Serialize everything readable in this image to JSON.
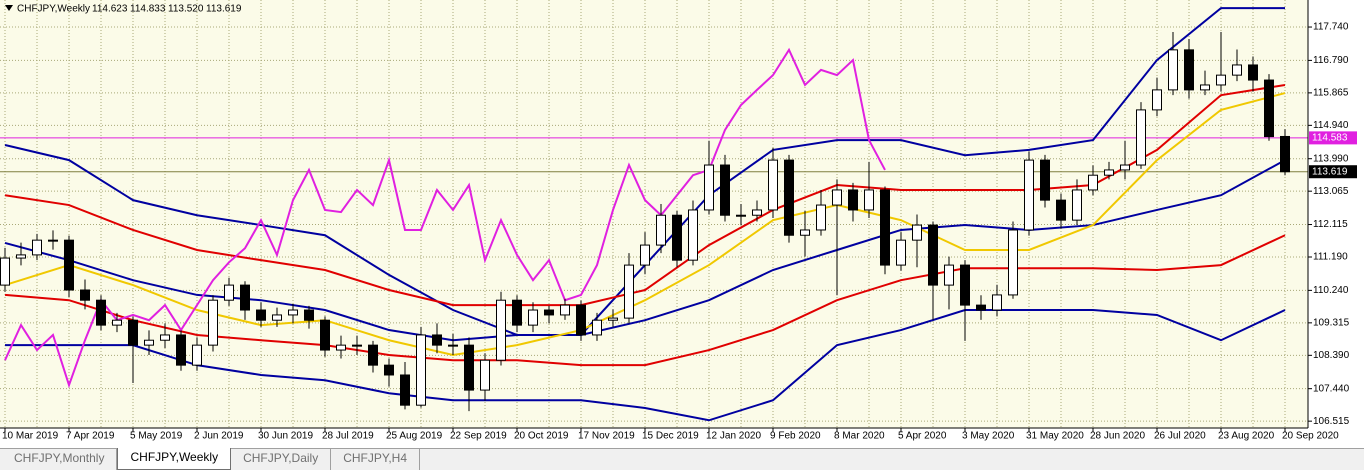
{
  "chart_data": {
    "type": "candlestick",
    "title": "CHFJPY,Weekly",
    "last_bar_labels": [
      "114.623",
      "114.833",
      "113.520",
      "113.619"
    ],
    "categories": [
      "10 Mar 2019",
      null,
      null,
      null,
      "7 Apr 2019",
      null,
      null,
      null,
      "5 May 2019",
      null,
      null,
      null,
      "2 Jun 2019",
      null,
      null,
      null,
      "30 Jun 2019",
      null,
      null,
      null,
      "28 Jul 2019",
      null,
      null,
      null,
      "25 Aug 2019",
      null,
      null,
      null,
      "22 Sep 2019",
      null,
      null,
      null,
      "20 Oct 2019",
      null,
      null,
      null,
      "17 Nov 2019",
      null,
      null,
      null,
      "15 Dec 2019",
      null,
      null,
      null,
      "12 Jan 2020",
      null,
      null,
      null,
      "9 Feb 2020",
      null,
      null,
      null,
      "8 Mar 2020",
      null,
      null,
      null,
      "5 Apr 2020",
      null,
      null,
      null,
      "3 May 2020",
      null,
      null,
      null,
      "31 May 2020",
      null,
      null,
      null,
      "28 Jun 2020",
      null,
      null,
      null,
      "26 Jul 2020",
      null,
      null,
      null,
      "23 Aug 2020",
      null,
      null,
      null,
      "20 Sep 2020"
    ],
    "open": [
      110.39,
      111.16,
      111.25,
      111.67,
      111.67,
      110.25,
      109.96,
      109.25,
      109.39,
      108.68,
      108.82,
      108.97,
      108.11,
      108.68,
      109.96,
      110.39,
      109.68,
      109.39,
      109.54,
      109.68,
      109.39,
      108.54,
      108.68,
      108.68,
      108.11,
      107.83,
      106.97,
      108.97,
      108.68,
      108.68,
      107.4,
      108.25,
      109.96,
      109.25,
      109.68,
      109.54,
      109.82,
      108.97,
      109.39,
      109.45,
      110.96,
      111.53,
      112.38,
      111.1,
      112.53,
      113.81,
      112.38,
      112.38,
      112.53,
      113.95,
      111.81,
      111.96,
      112.67,
      113.1,
      112.53,
      113.1,
      110.96,
      111.67,
      112.1,
      110.39,
      110.96,
      109.82,
      109.68,
      110.11,
      111.96,
      113.95,
      112.81,
      112.24,
      113.1,
      113.52,
      113.67,
      113.81,
      115.38,
      115.95,
      117.09,
      115.95,
      116.09,
      116.37,
      116.66,
      116.23,
      114.623
    ],
    "high": [
      111.45,
      111.6,
      111.85,
      111.95,
      111.8,
      110.55,
      110.1,
      109.6,
      109.5,
      109.1,
      109.3,
      109.1,
      108.9,
      110.1,
      110.6,
      110.5,
      109.9,
      109.75,
      109.85,
      109.8,
      109.5,
      108.95,
      108.95,
      108.8,
      108.3,
      108.2,
      109.2,
      109.3,
      109.0,
      108.9,
      108.45,
      110.2,
      110.1,
      109.9,
      109.8,
      110.0,
      109.95,
      109.6,
      109.7,
      111.3,
      111.9,
      112.7,
      112.5,
      112.8,
      114.5,
      114.1,
      112.7,
      112.8,
      114.3,
      114.1,
      112.5,
      113.1,
      113.4,
      113.3,
      113.9,
      113.2,
      111.9,
      112.4,
      112.2,
      111.2,
      111.1,
      110.1,
      110.4,
      112.2,
      114.2,
      114.1,
      113.0,
      113.4,
      113.8,
      113.9,
      114.5,
      115.6,
      116.3,
      117.6,
      117.4,
      116.5,
      117.6,
      117.1,
      116.9,
      116.4,
      114.833
    ],
    "low": [
      110.2,
      110.95,
      111.1,
      111.4,
      110.05,
      109.7,
      109.1,
      109.05,
      107.6,
      108.4,
      108.6,
      107.95,
      107.95,
      108.5,
      109.8,
      109.4,
      109.2,
      109.2,
      109.3,
      109.15,
      108.35,
      108.3,
      108.4,
      107.9,
      107.5,
      106.85,
      106.9,
      108.45,
      108.4,
      106.8,
      107.1,
      108.1,
      109.05,
      109.05,
      109.3,
      109.4,
      108.8,
      108.8,
      109.2,
      109.3,
      110.7,
      111.3,
      110.9,
      110.95,
      112.4,
      112.2,
      112.1,
      112.2,
      112.3,
      111.6,
      111.2,
      111.8,
      110.1,
      112.2,
      112.3,
      110.7,
      110.8,
      110.9,
      109.4,
      109.7,
      108.8,
      109.4,
      109.5,
      110.0,
      111.8,
      112.6,
      112.0,
      112.1,
      112.95,
      113.4,
      113.4,
      113.7,
      115.2,
      115.8,
      115.7,
      115.8,
      115.9,
      116.2,
      115.9,
      114.5,
      113.52
    ],
    "close": [
      111.16,
      111.25,
      111.67,
      111.67,
      110.25,
      109.96,
      109.25,
      109.39,
      108.68,
      108.82,
      108.97,
      108.11,
      108.68,
      109.96,
      110.39,
      109.68,
      109.39,
      109.54,
      109.68,
      109.39,
      108.54,
      108.68,
      108.68,
      108.11,
      107.83,
      106.97,
      108.97,
      108.68,
      108.68,
      107.4,
      108.25,
      109.96,
      109.25,
      109.68,
      109.54,
      109.82,
      108.97,
      109.39,
      109.45,
      110.96,
      111.53,
      112.38,
      111.1,
      112.53,
      113.81,
      112.38,
      112.38,
      112.53,
      113.95,
      111.81,
      111.96,
      112.67,
      113.1,
      112.53,
      113.1,
      110.96,
      111.67,
      112.1,
      110.39,
      110.96,
      109.82,
      109.68,
      110.11,
      111.96,
      113.95,
      112.81,
      112.24,
      113.1,
      113.52,
      113.67,
      113.81,
      115.38,
      115.95,
      117.09,
      115.95,
      116.09,
      116.37,
      116.66,
      116.23,
      114.62,
      113.619
    ],
    "up_color": "#ffffff",
    "down_color": "#000000",
    "outline_color": "#000000",
    "series": [
      {
        "color": "#e020e0",
        "values": [
          108.25,
          109.25,
          108.54,
          108.97,
          107.54,
          108.82,
          109.96,
          109.39,
          109.54,
          109.39,
          109.82,
          109.11,
          109.82,
          110.53,
          111.04,
          111.44,
          112.24,
          111.25,
          112.81,
          113.67,
          112.53,
          112.47,
          113.1,
          112.67,
          113.95,
          111.96,
          111.96,
          113.1,
          112.53,
          113.24,
          111.1,
          112.24,
          111.25,
          110.53,
          111.1,
          109.96,
          110.11,
          110.96,
          112.53,
          113.81,
          112.81,
          112.38,
          112.95,
          113.52,
          113.67,
          114.81,
          115.52,
          115.95,
          116.37,
          117.09,
          116.09,
          116.52,
          116.37,
          116.8,
          114.52,
          113.67,
          null,
          null,
          null,
          null,
          null,
          null,
          null,
          null,
          null,
          null,
          null,
          null,
          null,
          null,
          null,
          null,
          null,
          null,
          null,
          null,
          null,
          null,
          null,
          null,
          null
        ]
      }
    ],
    "overlays": {
      "x": [
        "10 Mar 2019",
        "7 Apr 2019",
        "5 May 2019",
        "2 Jun 2019",
        "30 Jun 2019",
        "28 Jul 2019",
        "25 Aug 2019",
        "22 Sep 2019",
        "20 Oct 2019",
        "17 Nov 2019",
        "15 Dec 2019",
        "12 Jan 2020",
        "9 Feb 2020",
        "8 Mar 2020",
        "5 Apr 2020",
        "3 May 2020",
        "31 May 2020",
        "28 Jun 2020",
        "26 Jul 2020",
        "23 Aug 2020",
        "20 Sep 2020"
      ],
      "series": [
        {
          "color": "#0000a0",
          "values": [
            114.38,
            113.95,
            112.81,
            112.38,
            112.1,
            111.81,
            110.68,
            109.68,
            108.97,
            108.97,
            110.96,
            112.95,
            114.24,
            114.52,
            114.52,
            114.09,
            114.24,
            114.52,
            116.8,
            118.28,
            118.28
          ]
        },
        {
          "color": "#0000a0",
          "values": [
            111.59,
            111.1,
            110.53,
            110.11,
            109.96,
            109.68,
            109.11,
            108.82,
            108.97,
            108.97,
            109.39,
            109.96,
            110.82,
            111.39,
            111.96,
            112.1,
            111.96,
            112.1,
            112.53,
            112.95,
            113.95
          ]
        },
        {
          "color": "#0000a0",
          "values": [
            108.68,
            108.68,
            108.68,
            108.11,
            107.83,
            107.68,
            107.31,
            107.11,
            107.11,
            107.11,
            106.89,
            106.54,
            107.11,
            108.68,
            109.11,
            109.68,
            109.68,
            109.68,
            109.54,
            108.82,
            109.68
          ]
        },
        {
          "color": "#e00000",
          "values": [
            112.95,
            112.67,
            111.96,
            111.39,
            111.1,
            110.82,
            110.25,
            109.82,
            109.82,
            109.82,
            110.25,
            111.53,
            112.53,
            113.24,
            113.1,
            113.1,
            113.1,
            113.24,
            114.24,
            115.8,
            116.09
          ]
        },
        {
          "color": "#e00000",
          "values": [
            110.11,
            109.96,
            109.39,
            108.97,
            108.82,
            108.68,
            108.4,
            108.25,
            108.25,
            108.11,
            108.11,
            108.54,
            109.11,
            109.96,
            110.53,
            110.87,
            110.87,
            110.87,
            110.82,
            110.96,
            111.81
          ]
        },
        {
          "color": "#f0c800",
          "values": [
            110.39,
            110.96,
            110.39,
            109.68,
            109.25,
            109.39,
            108.82,
            108.4,
            108.68,
            109.11,
            109.96,
            110.96,
            112.24,
            112.67,
            112.24,
            111.39,
            111.39,
            112.1,
            113.95,
            115.38,
            115.86
          ]
        }
      ]
    },
    "price_lines": [
      {
        "value": 114.583,
        "color": "#e020e0"
      },
      {
        "value": 113.619,
        "color": "#000000"
      }
    ],
    "ylim": [
      106.32,
      118.51
    ],
    "yticks": [
      {
        "value": 106.515,
        "label": "106.515"
      },
      {
        "value": 107.44,
        "label": "107.440"
      },
      {
        "value": 108.39,
        "label": "108.390"
      },
      109.315,
      {
        "value": 110.24,
        "label": "110.240"
      },
      {
        "value": 111.19,
        "label": "111.190"
      },
      112.115,
      113.065,
      {
        "value": 113.99,
        "label": "113.990"
      },
      {
        "value": 114.94,
        "label": "114.940"
      },
      115.865,
      {
        "value": 116.79,
        "label": "116.790"
      },
      {
        "value": 117.74,
        "label": "117.740"
      }
    ],
    "grid": true
  },
  "tabs": [
    {
      "label": "CHFJPY,Monthly",
      "active": false
    },
    {
      "label": "CHFJPY,Weekly",
      "active": true
    },
    {
      "label": "CHFJPY,Daily",
      "active": false
    },
    {
      "label": "CHFJPY,H4",
      "active": false
    }
  ]
}
